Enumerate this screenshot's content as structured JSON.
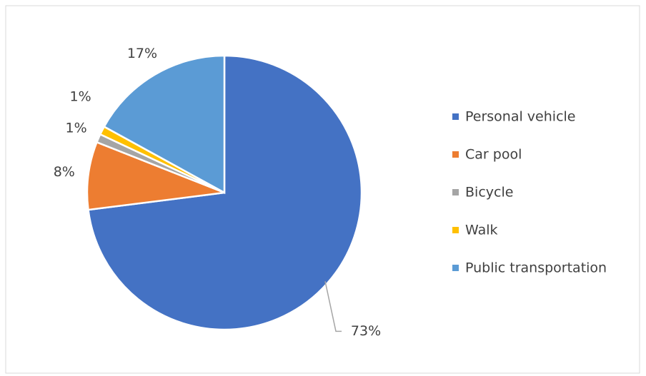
{
  "chart_data": {
    "type": "pie",
    "categories": [
      "Personal vehicle",
      "Car pool",
      "Bicycle",
      "Walk",
      "Public transportation"
    ],
    "values": [
      73,
      8,
      1,
      1,
      17
    ],
    "value_labels": [
      "73%",
      "8%",
      "1%",
      "1%",
      "17%"
    ],
    "colors": [
      "#4472c4",
      "#ed7d31",
      "#a5a5a5",
      "#ffc000",
      "#5b9bd5"
    ],
    "legend": "right"
  }
}
